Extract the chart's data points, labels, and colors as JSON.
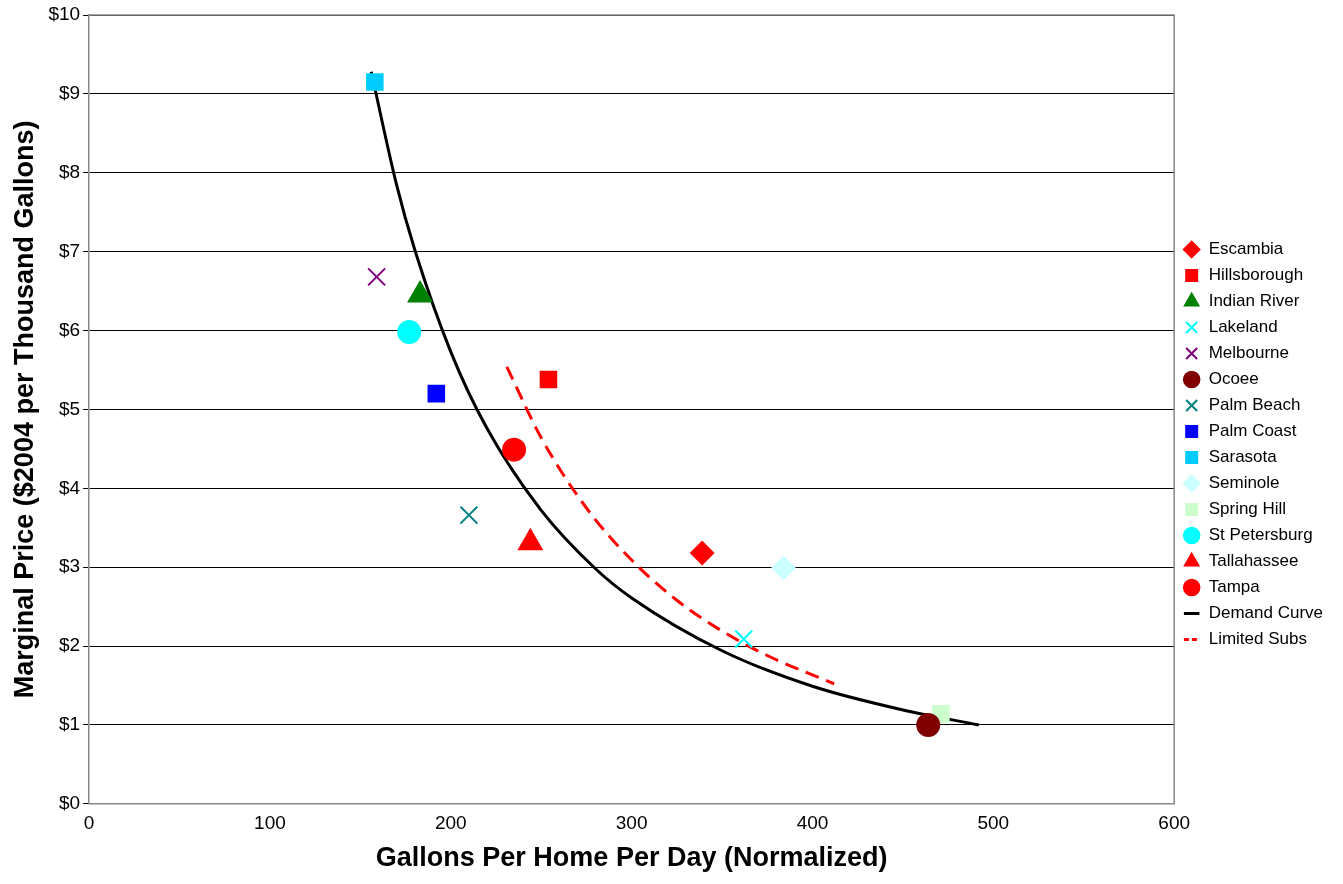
{
  "chart_data": {
    "type": "scatter",
    "xlabel": "Gallons Per Home Per Day (Normalized)",
    "ylabel": "Marginal Price ($2004 per Thousand Gallons)",
    "xlim": [
      0,
      600
    ],
    "xticks": [
      0,
      100,
      200,
      300,
      400,
      500,
      600
    ],
    "ylim": [
      0,
      10
    ],
    "yticks": [
      {
        "value": 0,
        "label": "$0"
      },
      {
        "value": 1,
        "label": "$1"
      },
      {
        "value": 2,
        "label": "$2"
      },
      {
        "value": 3,
        "label": "$3"
      },
      {
        "value": 4,
        "label": "$4"
      },
      {
        "value": 5,
        "label": "$5"
      },
      {
        "value": 6,
        "label": "$6"
      },
      {
        "value": 7,
        "label": "$7"
      },
      {
        "value": 8,
        "label": "$8"
      },
      {
        "value": 9,
        "label": "$9"
      },
      {
        "value": 10,
        "label": "$10"
      }
    ],
    "grid": "y",
    "legend": "right",
    "series": [
      {
        "name": "Escambia",
        "color": "#ff0000",
        "marker": "diamond",
        "x": [
          339
        ],
        "values": [
          3.18
        ]
      },
      {
        "name": "Hillsborough",
        "color": "#ff0000",
        "marker": "square",
        "x": [
          254
        ],
        "values": [
          5.38
        ]
      },
      {
        "name": "Indian River",
        "color": "#008000",
        "marker": "triangle",
        "x": [
          183
        ],
        "values": [
          6.45
        ]
      },
      {
        "name": "Lakeland",
        "color": "#00ffff",
        "marker": "cross",
        "x": [
          362
        ],
        "values": [
          2.09
        ]
      },
      {
        "name": "Melbourne",
        "color": "#800080",
        "marker": "cross",
        "x": [
          159
        ],
        "values": [
          6.68
        ]
      },
      {
        "name": "Ocoee",
        "color": "#800000",
        "marker": "circle",
        "x": [
          464
        ],
        "values": [
          1.0
        ]
      },
      {
        "name": "Palm Beach",
        "color": "#008080",
        "marker": "cross",
        "x": [
          210
        ],
        "values": [
          3.66
        ]
      },
      {
        "name": "Palm Coast",
        "color": "#0000ff",
        "marker": "square",
        "x": [
          192
        ],
        "values": [
          5.2
        ]
      },
      {
        "name": "Sarasota",
        "color": "#00ccff",
        "marker": "square",
        "x": [
          158
        ],
        "values": [
          9.15
        ]
      },
      {
        "name": "Seminole",
        "color": "#ccffff",
        "marker": "diamond",
        "x": [
          384
        ],
        "values": [
          2.99
        ]
      },
      {
        "name": "Spring Hill",
        "color": "#ccffcc",
        "marker": "square",
        "x": [
          471
        ],
        "values": [
          1.14
        ]
      },
      {
        "name": "St Petersburg",
        "color": "#00ffff",
        "marker": "circle",
        "x": [
          177
        ],
        "values": [
          5.98
        ]
      },
      {
        "name": "Tallahassee",
        "color": "#ff0000",
        "marker": "triangle",
        "x": [
          244
        ],
        "values": [
          3.31
        ]
      },
      {
        "name": "Tampa",
        "color": "#ff0000",
        "marker": "circle",
        "x": [
          235
        ],
        "values": [
          4.49
        ]
      },
      {
        "name": "Demand Curve",
        "type": "line",
        "color": "#000000",
        "line_style": "solid",
        "marker": "none",
        "x": [
          156,
          170,
          180,
          200,
          220,
          250,
          280,
          300,
          350,
          400,
          450,
          492
        ],
        "values": [
          9.28,
          7.85,
          7.03,
          5.73,
          4.76,
          3.72,
          2.98,
          2.61,
          1.94,
          1.49,
          1.19,
          1.0
        ]
      },
      {
        "name": "Limited Subs",
        "type": "line",
        "color": "#ff0000",
        "line_style": "dashed",
        "marker": "none",
        "x": [
          231,
          250,
          275,
          300,
          325,
          350,
          375,
          412
        ],
        "values": [
          5.54,
          4.64,
          3.75,
          3.09,
          2.58,
          2.19,
          1.88,
          1.52
        ]
      }
    ]
  }
}
